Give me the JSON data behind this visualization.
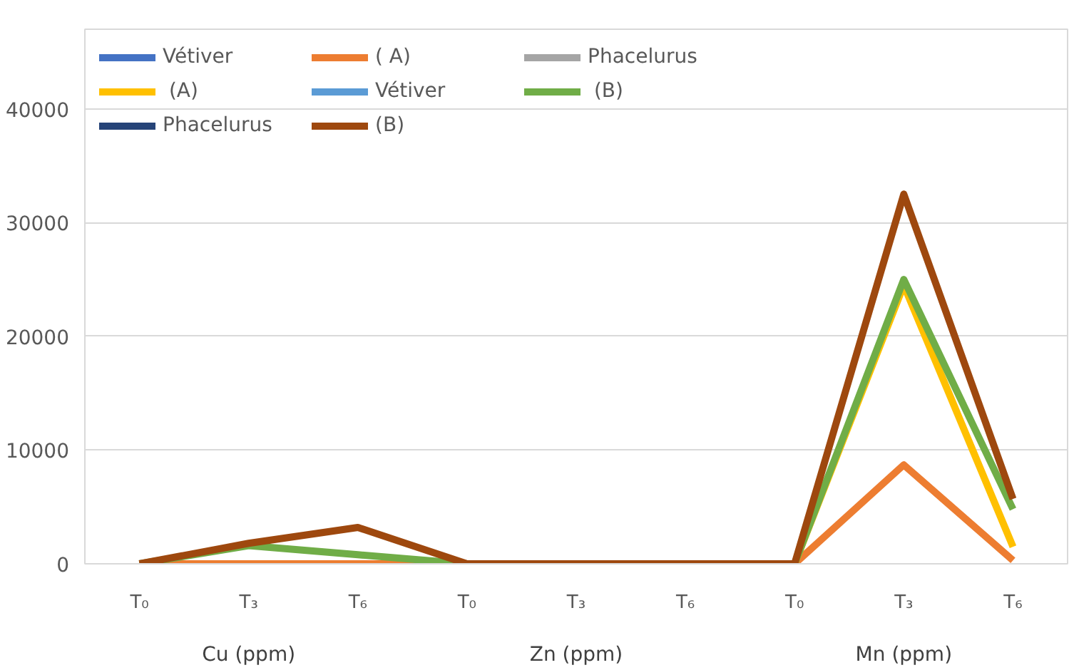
{
  "chart_data": {
    "type": "line",
    "categories": [
      "T₀",
      "T₃",
      "T₆",
      "T₀",
      "T₃",
      "T₆",
      "T₀",
      "T₃",
      "T₆"
    ],
    "annotations": [
      "Cu (ppm)",
      "Zn (ppm)",
      "Mn (ppm)"
    ],
    "ylim": [
      0,
      47000
    ],
    "yticks": [
      0,
      10000,
      20000,
      30000,
      40000
    ],
    "grid": "y",
    "legend": "top",
    "line_style": "solid",
    "series": [
      {
        "name": "Vétiver",
        "color": "#4472c4",
        "values": [
          null,
          null,
          null,
          null,
          null,
          null,
          null,
          null,
          null
        ]
      },
      {
        "name": "( A)",
        "color": "#ed7d31",
        "values": [
          0,
          0,
          0,
          0,
          0,
          0,
          0,
          8700,
          300
        ]
      },
      {
        "name": "Phacelurus",
        "color": "#a5a5a5",
        "values": [
          null,
          null,
          null,
          null,
          null,
          null,
          null,
          null,
          null
        ]
      },
      {
        "name": " (A)",
        "color": "#ffc000",
        "values": [
          null,
          null,
          null,
          null,
          null,
          null,
          0,
          24500,
          1500
        ]
      },
      {
        "name": "Vétiver",
        "color": "#5b9bd5",
        "values": [
          null,
          null,
          null,
          null,
          null,
          null,
          null,
          null,
          null
        ]
      },
      {
        "name": " (B)",
        "color": "#70ad47",
        "values": [
          0,
          1600,
          800,
          0,
          0,
          0,
          0,
          25000,
          4800
        ]
      },
      {
        "name": "Phacelurus",
        "color": "#264478",
        "values": [
          null,
          null,
          null,
          null,
          null,
          null,
          null,
          null,
          null
        ]
      },
      {
        "name": "(B)",
        "color": "#9e480e",
        "values": [
          0,
          1800,
          3200,
          0,
          0,
          0,
          0,
          32500,
          5700
        ]
      }
    ]
  }
}
